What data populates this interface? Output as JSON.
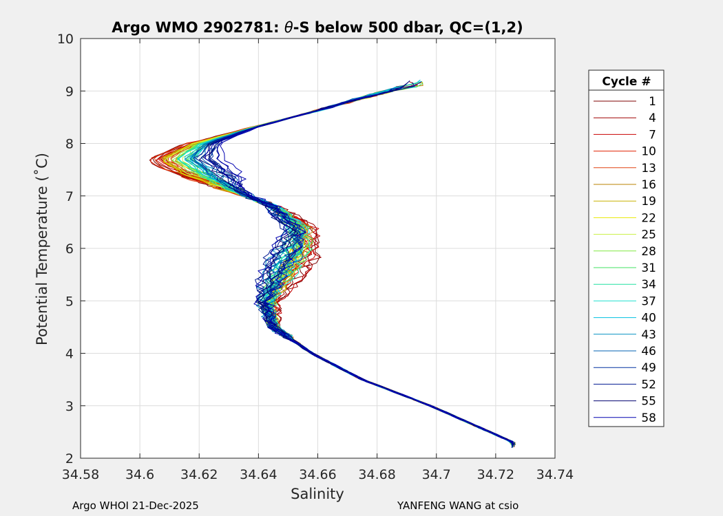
{
  "chart_data": {
    "type": "line",
    "title": "Argo WMO 2902781: θ-S below 500 dbar,  QC=(1,2)",
    "title_parts": {
      "prefix": "Argo WMO 2902781: ",
      "theta": "θ",
      "suffix": "-S below 500 dbar,  QC=(1,2)"
    },
    "xlabel": "Salinity",
    "ylabel": "Potential Temperature (˚C)",
    "xlim": [
      34.58,
      34.74
    ],
    "ylim": [
      2,
      10
    ],
    "xticks": [
      "34.58",
      "34.6",
      "34.62",
      "34.64",
      "34.66",
      "34.68",
      "34.7",
      "34.72",
      "34.74"
    ],
    "yticks": [
      "2",
      "3",
      "4",
      "5",
      "6",
      "7",
      "8",
      "9",
      "10"
    ],
    "grid": true,
    "legend": {
      "title": "Cycle #",
      "position": "right-outside",
      "entries": [
        {
          "label": "1",
          "color": "#7f0000"
        },
        {
          "label": "4",
          "color": "#9f0000"
        },
        {
          "label": "7",
          "color": "#c80000"
        },
        {
          "label": "10",
          "color": "#e02000"
        },
        {
          "label": "13",
          "color": "#e04010"
        },
        {
          "label": "16",
          "color": "#b88000"
        },
        {
          "label": "19",
          "color": "#c8b000"
        },
        {
          "label": "22",
          "color": "#e8e800"
        },
        {
          "label": "25",
          "color": "#c8f040"
        },
        {
          "label": "28",
          "color": "#80e840"
        },
        {
          "label": "31",
          "color": "#40e060"
        },
        {
          "label": "34",
          "color": "#20e0a0"
        },
        {
          "label": "37",
          "color": "#20e0d0"
        },
        {
          "label": "40",
          "color": "#00c0e0"
        },
        {
          "label": "43",
          "color": "#0090c0"
        },
        {
          "label": "46",
          "color": "#0060b0"
        },
        {
          "label": "49",
          "color": "#0030a0"
        },
        {
          "label": "52",
          "color": "#001890"
        },
        {
          "label": "55",
          "color": "#000070"
        },
        {
          "label": "58",
          "color": "#0000b0"
        }
      ]
    },
    "profile_shape": {
      "description_points": [
        {
          "t": 2.3,
          "s": 34.726
        },
        {
          "t": 2.5,
          "s": 34.718
        },
        {
          "t": 3.0,
          "s": 34.698
        },
        {
          "t": 3.5,
          "s": 34.675
        },
        {
          "t": 4.0,
          "s": 34.658
        },
        {
          "t": 4.5,
          "s": 34.645
        },
        {
          "t": 5.0,
          "s": 34.643
        },
        {
          "t": 5.5,
          "s": 34.648
        },
        {
          "t": 6.0,
          "s": 34.653
        },
        {
          "t": 6.4,
          "s": 34.654
        },
        {
          "t": 6.8,
          "s": 34.645
        },
        {
          "t": 7.1,
          "s": 34.632
        },
        {
          "t": 7.4,
          "s": 34.622
        },
        {
          "t": 7.7,
          "s": 34.614
        },
        {
          "t": 8.0,
          "s": 34.621
        },
        {
          "t": 8.3,
          "s": 34.638
        },
        {
          "t": 8.6,
          "s": 34.658
        },
        {
          "t": 8.9,
          "s": 34.676
        },
        {
          "t": 9.1,
          "s": 34.69
        }
      ]
    }
  },
  "footer": {
    "left": "Argo WHOI 21-Dec-2025",
    "right": "YANFENG WANG at csio"
  }
}
